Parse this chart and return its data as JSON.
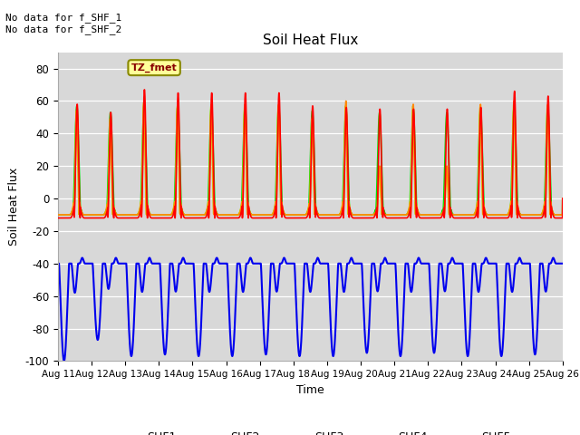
{
  "title": "Soil Heat Flux",
  "xlabel": "Time",
  "ylabel": "Soil Heat Flux",
  "ylim": [
    -100,
    90
  ],
  "yticks": [
    -100,
    -80,
    -60,
    -40,
    -20,
    0,
    20,
    40,
    60,
    80
  ],
  "background_color": "#ffffff",
  "plot_bg_color": "#d8d8d8",
  "annotation_text": "No data for f_SHF_1\nNo data for f_SHF_2",
  "legend_box_text": "TZ_fmet",
  "legend_box_color": "#ffff99",
  "legend_box_border": "#888800",
  "n_days": 15,
  "day_start": 11,
  "series_colors": {
    "SHF1": "#ff0000",
    "SHF2": "#ff8800",
    "SHF3": "#cccc00",
    "SHF4": "#00dd00",
    "SHF5": "#0000ee"
  },
  "series_linewidths": {
    "SHF1": 1.2,
    "SHF2": 1.2,
    "SHF3": 1.2,
    "SHF4": 1.2,
    "SHF5": 1.5
  }
}
